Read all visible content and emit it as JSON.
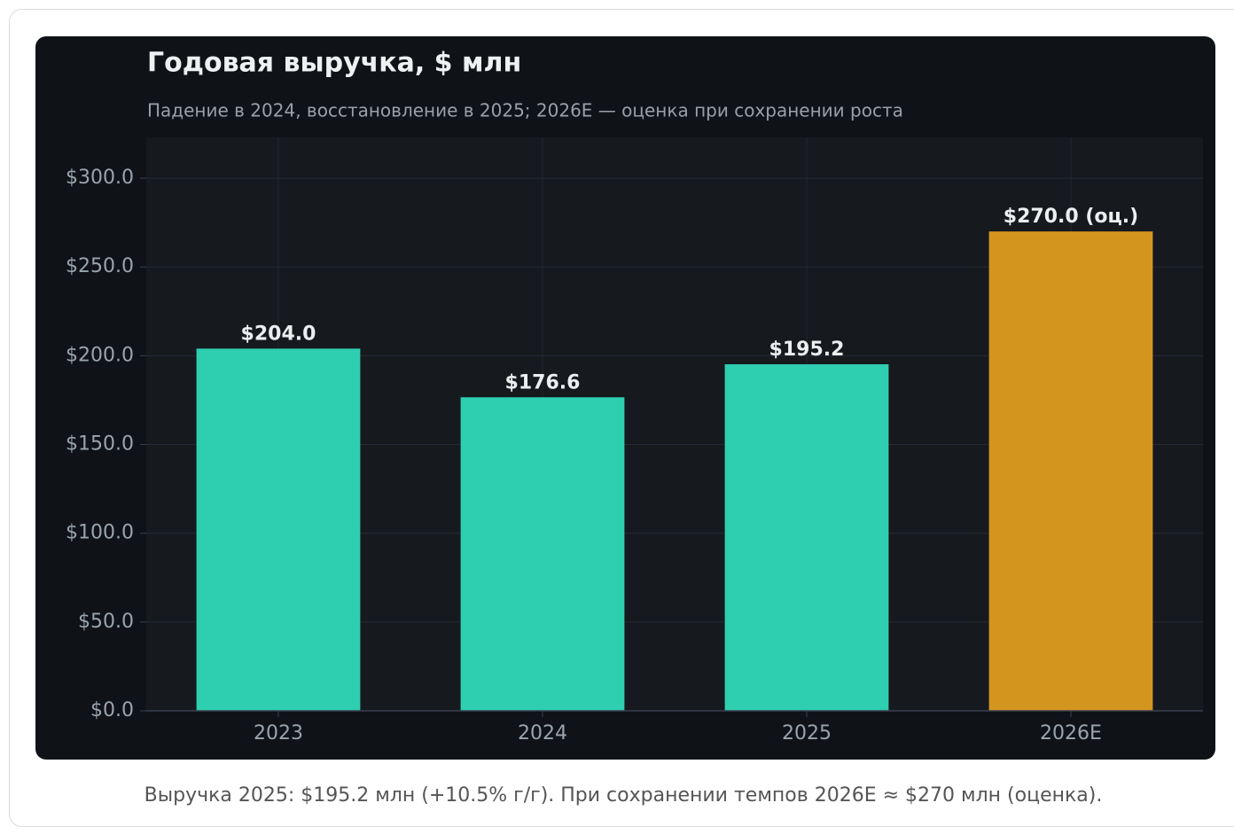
{
  "chart_data": {
    "type": "bar",
    "title": "Годовая выручка, $ млн",
    "subtitle": "Падение в 2024, восстановление в 2025; 2026E — оценка при сохранении роста",
    "categories": [
      "2023",
      "2024",
      "2025",
      "2026E"
    ],
    "values": [
      204.0,
      176.6,
      195.2,
      270.0
    ],
    "value_labels": [
      "$204.0",
      "$176.6",
      "$195.2",
      "$270.0 (оц.)"
    ],
    "colors": [
      "#2ecfb1",
      "#2ecfb1",
      "#2ecfb1",
      "#d4951f"
    ],
    "ylim": [
      0,
      323
    ],
    "yticks": [
      {
        "value": 0,
        "label": "$0.0"
      },
      {
        "value": 50,
        "label": "$50.0"
      },
      {
        "value": 100,
        "label": "$100.0"
      },
      {
        "value": 150,
        "label": "$150.0"
      },
      {
        "value": 200,
        "label": "$200.0"
      },
      {
        "value": 250,
        "label": "$250.0"
      },
      {
        "value": 300,
        "label": "$300.0"
      }
    ],
    "grid": true,
    "caption": "Выручка 2025: $195.2 млн (+10.5% г/г). При сохранении темпов 2026E ≈ $270 млн (оценка)."
  }
}
